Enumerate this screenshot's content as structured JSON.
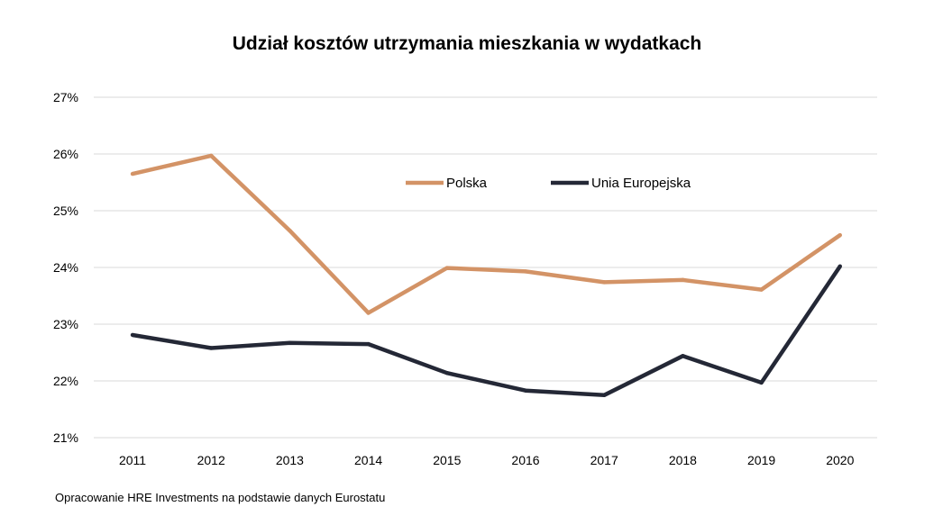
{
  "chart_data": {
    "type": "line",
    "title": "Udział kosztów utrzymania mieszkania w wydatkach",
    "categories": [
      "2011",
      "2012",
      "2013",
      "2014",
      "2015",
      "2016",
      "2017",
      "2018",
      "2019",
      "2020"
    ],
    "ylim": [
      21,
      27
    ],
    "yticks": [
      21,
      22,
      23,
      24,
      25,
      26,
      27
    ],
    "ytick_labels": [
      "21%",
      "22%",
      "23%",
      "24%",
      "25%",
      "26%",
      "27%"
    ],
    "xlabel": "",
    "ylabel": "",
    "grid": true,
    "legend_position": "top-right inside plot",
    "series": [
      {
        "name": "Polska",
        "color": "#d39366",
        "values": [
          25.65,
          25.97,
          24.65,
          23.2,
          23.99,
          23.93,
          23.74,
          23.78,
          23.61,
          24.57
        ]
      },
      {
        "name": "Unia Europejska",
        "color": "#242836",
        "values": [
          22.81,
          22.58,
          22.67,
          22.65,
          22.14,
          21.83,
          21.75,
          22.44,
          21.97,
          24.02
        ]
      }
    ]
  },
  "source_note": "Opracowanie HRE Investments na podstawie danych Eurostatu"
}
